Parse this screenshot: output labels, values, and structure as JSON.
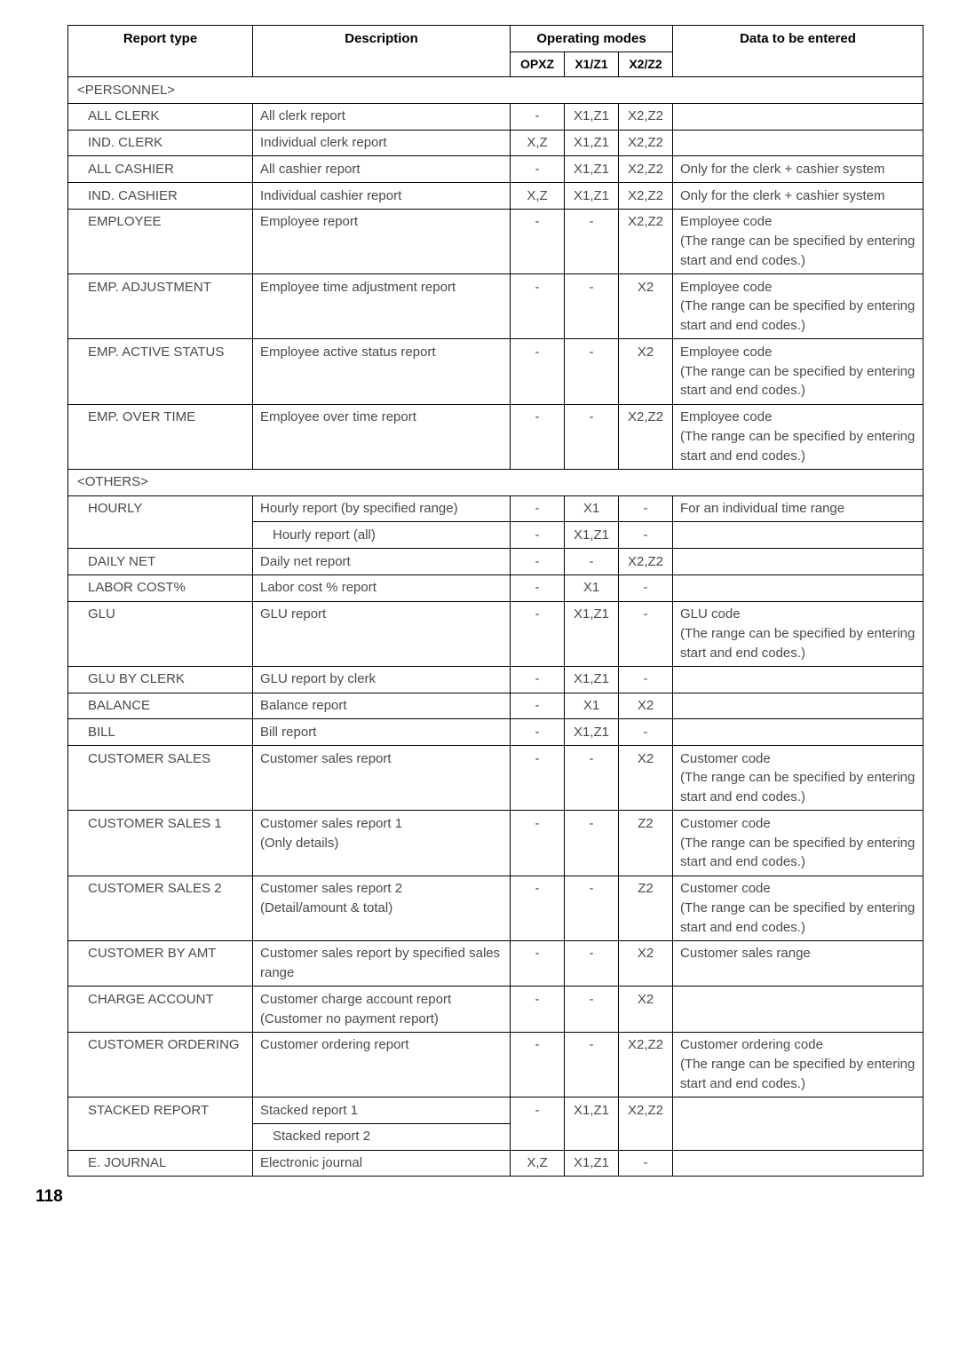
{
  "page_number": "118",
  "headers": {
    "report_type": "Report type",
    "description": "Description",
    "operating_modes": "Operating modes",
    "opxz": "OPXZ",
    "x1z1": "X1/Z1",
    "x2z2": "X2/Z2",
    "data_to_be_entered": "Data to be entered"
  },
  "sections": [
    {
      "title": "<PERSONNEL>",
      "rows": [
        {
          "rt": "ALL CLERK",
          "desc": "All clerk report",
          "op": [
            "-",
            "X1,Z1",
            "X2,Z2"
          ],
          "data": ""
        },
        {
          "rt": "IND. CLERK",
          "desc": "Individual clerk report",
          "op": [
            "X,Z",
            "X1,Z1",
            "X2,Z2"
          ],
          "data": ""
        },
        {
          "rt": "ALL CASHIER",
          "desc": "All cashier report",
          "op": [
            "-",
            "X1,Z1",
            "X2,Z2"
          ],
          "data": "Only for the clerk + cashier system"
        },
        {
          "rt": "IND. CASHIER",
          "desc": "Individual cashier report",
          "op": [
            "X,Z",
            "X1,Z1",
            "X2,Z2"
          ],
          "data": "Only for the clerk + cashier system"
        },
        {
          "rt": "EMPLOYEE",
          "desc": "Employee report",
          "op": [
            "-",
            "-",
            "X2,Z2"
          ],
          "data": "Employee code\n(The range can be specified by entering start and end codes.)"
        },
        {
          "rt": "EMP. ADJUSTMENT",
          "desc": "Employee time adjustment report",
          "op": [
            "-",
            "-",
            "X2"
          ],
          "data": "Employee code\n(The range can be specified by entering start and end codes.)"
        },
        {
          "rt": "EMP. ACTIVE STATUS",
          "desc": "Employee active status report",
          "op": [
            "-",
            "-",
            "X2"
          ],
          "data": "Employee code\n(The range can be specified by entering start and end codes.)"
        },
        {
          "rt": "EMP. OVER TIME",
          "desc": "Employee over time report",
          "op": [
            "-",
            "-",
            "X2,Z2"
          ],
          "data": "Employee code\n(The range can be specified by entering start and end codes.)"
        }
      ]
    },
    {
      "title": "<OTHERS>",
      "rows": [
        {
          "rt": "HOURLY",
          "desc": "Hourly report (by specified range)",
          "op": [
            "-",
            "X1",
            "-"
          ],
          "data": "For an individual time range",
          "rowspan_rt": 2
        },
        {
          "rt": "",
          "desc": "Hourly report (all)",
          "op": [
            "-",
            "X1,Z1",
            "-"
          ],
          "data": "",
          "skip_rt": true
        },
        {
          "rt": "DAILY NET",
          "desc": "Daily net report",
          "op": [
            "-",
            "-",
            "X2,Z2"
          ],
          "data": ""
        },
        {
          "rt": "LABOR COST%",
          "desc": "Labor cost % report",
          "op": [
            "-",
            "X1",
            "-"
          ],
          "data": ""
        },
        {
          "rt": "GLU",
          "desc": "GLU report",
          "op": [
            "-",
            "X1,Z1",
            "-"
          ],
          "data": "GLU code\n(The range can be specified by entering start and end codes.)"
        },
        {
          "rt": "GLU BY CLERK",
          "desc": "GLU report by clerk",
          "op": [
            "-",
            "X1,Z1",
            "-"
          ],
          "data": ""
        },
        {
          "rt": "BALANCE",
          "desc": "Balance report",
          "op": [
            "-",
            "X1",
            "X2"
          ],
          "data": ""
        },
        {
          "rt": "BILL",
          "desc": "Bill report",
          "op": [
            "-",
            "X1,Z1",
            "-"
          ],
          "data": ""
        },
        {
          "rt": "CUSTOMER SALES",
          "desc": "Customer sales report",
          "op": [
            "-",
            "-",
            "X2"
          ],
          "data": "Customer code\n(The range can be specified by entering start and end codes.)"
        },
        {
          "rt": "CUSTOMER SALES 1",
          "desc": "Customer sales report 1\n(Only details)",
          "op": [
            "-",
            "-",
            "Z2"
          ],
          "data": "Customer code\n(The range can be specified by entering start and end codes.)"
        },
        {
          "rt": "CUSTOMER SALES 2",
          "desc": "Customer sales report 2\n(Detail/amount & total)",
          "op": [
            "-",
            "-",
            "Z2"
          ],
          "data": "Customer code\n(The range can be specified by entering start and end codes.)"
        },
        {
          "rt": "CUSTOMER BY AMT",
          "desc": "Customer sales report by specified sales range",
          "op": [
            "-",
            "-",
            "X2"
          ],
          "data": "Customer sales range"
        },
        {
          "rt": "CHARGE ACCOUNT",
          "desc": "Customer charge account report\n(Customer no payment report)",
          "op": [
            "-",
            "-",
            "X2"
          ],
          "data": ""
        },
        {
          "rt": "CUSTOMER ORDERING",
          "desc": "Customer ordering report",
          "op": [
            "-",
            "-",
            "X2,Z2"
          ],
          "data": "Customer ordering code\n(The range can be specified by entering start and end codes.)"
        },
        {
          "rt": "STACKED REPORT",
          "desc": "Stacked report 1",
          "op": [
            "-",
            "X1,Z1",
            "X2,Z2"
          ],
          "data": "",
          "rowspan_rt": 2
        },
        {
          "rt": "",
          "desc": "Stacked report 2",
          "op": [
            "",
            "",
            ""
          ],
          "data": "",
          "skip_rt": true,
          "merge_up_op_data": true
        },
        {
          "rt": "E. JOURNAL",
          "desc": "Electronic journal",
          "op": [
            "X,Z",
            "X1,Z1",
            "-"
          ],
          "data": ""
        }
      ]
    }
  ]
}
